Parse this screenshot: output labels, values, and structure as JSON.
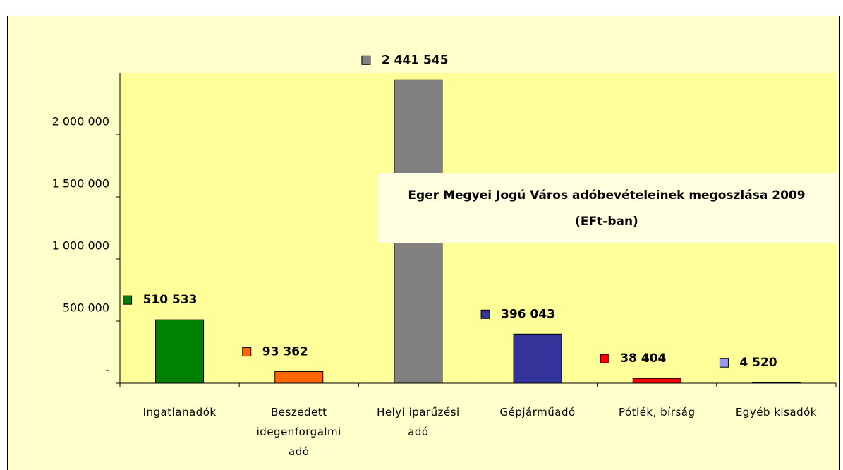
{
  "chart_data": {
    "type": "bar",
    "title": "Eger Megyei Jogú Város adóbevételeinek megoszlása 2009 (EFt-ban)",
    "categories": [
      "Ingatlanadók",
      "Beszedett idegenforgalmi adó",
      "Helyi iparűzési adó",
      "Gépjárműadó",
      "Pótlék, bírság",
      "Egyéb kisadók"
    ],
    "values": [
      510533,
      93362,
      2441545,
      396043,
      38404,
      4520
    ],
    "value_labels": [
      "510 533",
      "93 362",
      "2 441 545",
      "396 043",
      "38 404",
      "4 520"
    ],
    "colors": [
      "#008000",
      "#ff6600",
      "#808080",
      "#333399",
      "#ff0000",
      "#9999ff"
    ],
    "ylim": [
      0,
      2500000
    ],
    "yticks": [
      {
        "value": 0,
        "label": "-"
      },
      {
        "value": 500000,
        "label": "500 000"
      },
      {
        "value": 1000000,
        "label": "1 000 000"
      },
      {
        "value": 1500000,
        "label": "1 500 000"
      },
      {
        "value": 2000000,
        "label": "2 000 000"
      }
    ]
  }
}
